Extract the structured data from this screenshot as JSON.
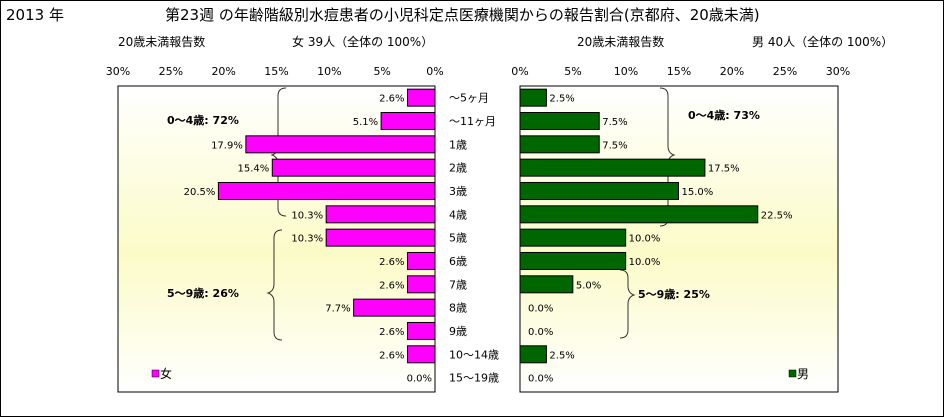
{
  "header": {
    "year": "2013 年",
    "title": "第23週 の年齢階級別水痘患者の小児科定点医療機関からの報告割合(京都府、20歳未満)"
  },
  "left": {
    "subtitle": "20歳未満報告数",
    "count_label": "女 39人（全体の 100%）",
    "legend": "女",
    "group1": "0～4歳: 72%",
    "group2": "5～9歳: 26%"
  },
  "right": {
    "subtitle": "20歳未満報告数",
    "count_label": "男 40人（全体の 100%）",
    "legend": "男",
    "group1": "0～4歳: 73%",
    "group2": "5～9歳: 25%"
  },
  "chart_data": [
    {
      "type": "bar",
      "orientation": "horizontal",
      "direction": "right-to-left",
      "series": [
        {
          "name": "女",
          "color": "#ff00ff",
          "values": [
            2.6,
            5.1,
            17.9,
            15.4,
            20.5,
            10.3,
            10.3,
            2.6,
            2.6,
            7.7,
            2.6,
            2.6,
            0.0
          ]
        }
      ],
      "categories": [
        "～5ヶ月",
        "～11ヶ月",
        "1歳",
        "2歳",
        "3歳",
        "4歳",
        "5歳",
        "6歳",
        "7歳",
        "8歳",
        "9歳",
        "10～14歳",
        "15～19歳"
      ],
      "xlim": [
        0,
        30
      ],
      "ticks": [
        "30%",
        "25%",
        "20%",
        "15%",
        "10%",
        "5%",
        "0%"
      ],
      "value_labels": [
        "2.6%",
        "5.1%",
        "17.9%",
        "15.4%",
        "20.5%",
        "10.3%",
        "10.3%",
        "2.6%",
        "2.6%",
        "7.7%",
        "2.6%",
        "2.6%",
        "0.0%"
      ]
    },
    {
      "type": "bar",
      "orientation": "horizontal",
      "direction": "left-to-right",
      "series": [
        {
          "name": "男",
          "color": "#006600",
          "values": [
            2.5,
            7.5,
            7.5,
            17.5,
            15.0,
            22.5,
            10.0,
            10.0,
            5.0,
            0.0,
            0.0,
            2.5,
            0.0
          ]
        }
      ],
      "categories": [
        "～5ヶ月",
        "～11ヶ月",
        "1歳",
        "2歳",
        "3歳",
        "4歳",
        "5歳",
        "6歳",
        "7歳",
        "8歳",
        "9歳",
        "10～14歳",
        "15～19歳"
      ],
      "xlim": [
        0,
        30
      ],
      "ticks": [
        "0%",
        "5%",
        "10%",
        "15%",
        "20%",
        "25%",
        "30%"
      ],
      "value_labels": [
        "2.5%",
        "7.5%",
        "7.5%",
        "17.5%",
        "15.0%",
        "22.5%",
        "10.0%",
        "10.0%",
        "5.0%",
        "0.0%",
        "0.0%",
        "2.5%",
        "0.0%"
      ]
    }
  ]
}
